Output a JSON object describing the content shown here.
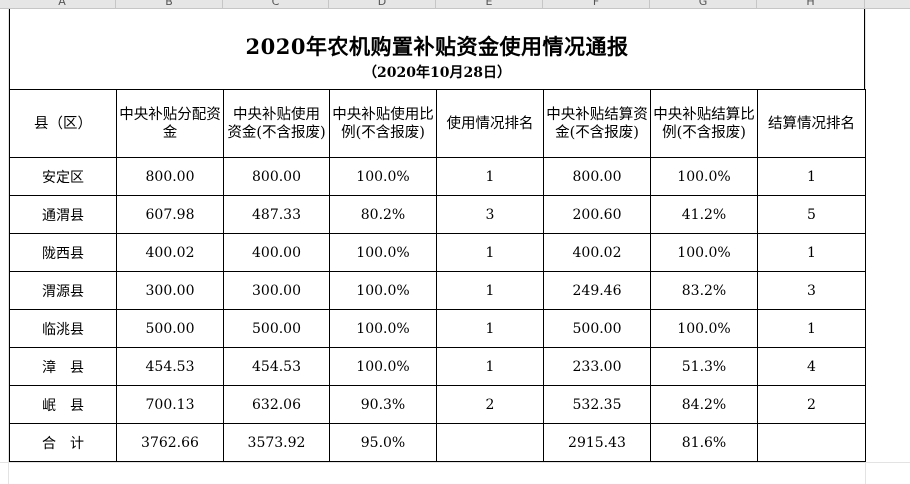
{
  "sheet": {
    "column_letters": [
      "A",
      "B",
      "C",
      "D",
      "E",
      "F",
      "G",
      "H"
    ]
  },
  "report": {
    "title": "2020年农机购置补贴资金使用情况通报",
    "subtitle": "（2020年10月28日）",
    "headers": [
      "县（区）",
      "中央补贴分配资金",
      "中央补贴使用资金(不含报废)",
      "中央补贴使用比例(不含报废)",
      "使用情况排名",
      "中央补贴结算资金(不含报废)",
      "中央补贴结算比例(不含报废)",
      "结算情况排名"
    ],
    "rows": [
      [
        "安定区",
        "800.00",
        "800.00",
        "100.0%",
        "1",
        "800.00",
        "100.0%",
        "1"
      ],
      [
        "通渭县",
        "607.98",
        "487.33",
        "80.2%",
        "3",
        "200.60",
        "41.2%",
        "5"
      ],
      [
        "陇西县",
        "400.02",
        "400.00",
        "100.0%",
        "1",
        "400.02",
        "100.0%",
        "1"
      ],
      [
        "渭源县",
        "300.00",
        "300.00",
        "100.0%",
        "1",
        "249.46",
        "83.2%",
        "3"
      ],
      [
        "临洮县",
        "500.00",
        "500.00",
        "100.0%",
        "1",
        "500.00",
        "100.0%",
        "1"
      ],
      [
        "漳　县",
        "454.53",
        "454.53",
        "100.0%",
        "1",
        "233.00",
        "51.3%",
        "4"
      ],
      [
        "岷　县",
        "700.13",
        "632.06",
        "90.3%",
        "2",
        "532.35",
        "84.2%",
        "2"
      ],
      [
        "合　计",
        "3762.66",
        "3573.92",
        "95.0%",
        "",
        "2915.43",
        "81.6%",
        ""
      ]
    ]
  }
}
